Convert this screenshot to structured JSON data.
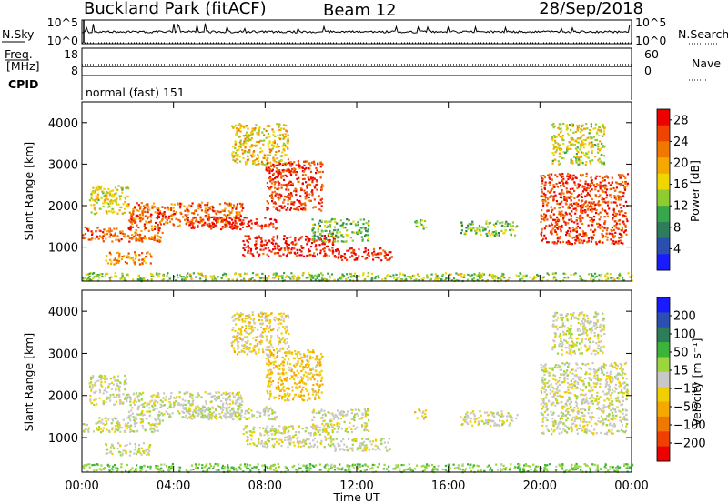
{
  "header": {
    "station": "Buckland Park (fitACF)",
    "beam": "Beam 12",
    "date": "28/Sep/2018"
  },
  "strip_panels": {
    "nsky": {
      "label": "N.Sky",
      "right_label": "N.Search",
      "left_ticks": [
        "10^5",
        "10^0"
      ],
      "right_ticks": [
        "10^5",
        "10^0"
      ]
    },
    "freq": {
      "label_line1": "Freq.",
      "label_line2": "[MHz]",
      "right_label": "Nave",
      "left_ticks": [
        "18",
        "8"
      ],
      "right_ticks": [
        "60",
        "0"
      ]
    },
    "cpid": {
      "label": "CPID",
      "text": "normal (fast) 151"
    }
  },
  "colors": {
    "power_scale": [
      "#1a1aff",
      "#2a4fb0",
      "#2e7d5a",
      "#34a84a",
      "#8fcc30",
      "#f0d600",
      "#f5a800",
      "#f07800",
      "#ee4400",
      "#ee0000"
    ],
    "velocity_scale": [
      "#ee0000",
      "#f04000",
      "#f07800",
      "#f5a800",
      "#f0d000",
      "#c8c8c8",
      "#9ad63c",
      "#3cb43c",
      "#2e7d5a",
      "#2a4fb0",
      "#1a1aff"
    ]
  },
  "chart_data": [
    {
      "type": "heatmap",
      "name": "power",
      "xlabel": "",
      "ylabel": "Slant Range [km]",
      "xlim": [
        "00:00",
        "24:00"
      ],
      "ylim": [
        180,
        4500
      ],
      "y_ticks": [
        1000,
        2000,
        3000,
        4000
      ],
      "colorbar": {
        "label": "Power [dB]",
        "ticks": [
          4,
          8,
          12,
          16,
          20,
          24,
          28
        ],
        "range": [
          0,
          30
        ]
      },
      "regions": [
        {
          "t0": 0.0,
          "t1": 24.0,
          "r0": 200,
          "r1": 400,
          "v": 14
        },
        {
          "t0": 0.0,
          "t1": 3.5,
          "r0": 1150,
          "r1": 1500,
          "v": 24
        },
        {
          "t0": 0.3,
          "t1": 2.0,
          "r0": 1800,
          "r1": 2500,
          "v": 16
        },
        {
          "t0": 1.0,
          "t1": 3.0,
          "r0": 600,
          "r1": 900,
          "v": 22
        },
        {
          "t0": 2.0,
          "t1": 7.0,
          "r0": 1500,
          "r1": 2100,
          "v": 24
        },
        {
          "t0": 4.5,
          "t1": 8.5,
          "r0": 1450,
          "r1": 1750,
          "v": 28
        },
        {
          "t0": 6.5,
          "t1": 9.0,
          "r0": 3000,
          "r1": 4000,
          "v": 18
        },
        {
          "t0": 8.0,
          "t1": 10.5,
          "r0": 1900,
          "r1": 3100,
          "v": 26
        },
        {
          "t0": 7.0,
          "t1": 11.0,
          "r0": 800,
          "r1": 1300,
          "v": 28
        },
        {
          "t0": 10.0,
          "t1": 12.5,
          "r0": 1150,
          "r1": 1700,
          "v": 12
        },
        {
          "t0": 11.0,
          "t1": 13.5,
          "r0": 700,
          "r1": 1000,
          "v": 28
        },
        {
          "t0": 14.5,
          "t1": 15.0,
          "r0": 1450,
          "r1": 1700,
          "v": 12
        },
        {
          "t0": 16.5,
          "t1": 19.0,
          "r0": 1300,
          "r1": 1650,
          "v": 12
        },
        {
          "t0": 20.0,
          "t1": 23.8,
          "r0": 1100,
          "r1": 2800,
          "v": 26
        },
        {
          "t0": 20.5,
          "t1": 22.8,
          "r0": 3000,
          "r1": 4000,
          "v": 16
        }
      ]
    },
    {
      "type": "heatmap",
      "name": "velocity",
      "xlabel": "Time UT",
      "ylabel": "Slant Range [km]",
      "xlim": [
        "00:00",
        "24:00"
      ],
      "ylim": [
        180,
        4500
      ],
      "x_ticks": [
        "00:00",
        "04:00",
        "08:00",
        "12:00",
        "16:00",
        "20:00",
        "00:00"
      ],
      "y_ticks": [
        1000,
        2000,
        3000,
        4000
      ],
      "colorbar": {
        "label": "Velocity [m s⁻¹]",
        "ticks": [
          200,
          100,
          50,
          15,
          -15,
          -50,
          -100,
          -200
        ],
        "range": [
          -250,
          250
        ]
      },
      "regions": [
        {
          "t0": 0.0,
          "t1": 24.0,
          "r0": 200,
          "r1": 400,
          "v": 60
        },
        {
          "t0": 0.0,
          "t1": 3.5,
          "r0": 1150,
          "r1": 1500,
          "v": 0
        },
        {
          "t0": 0.3,
          "t1": 2.0,
          "r0": 1800,
          "r1": 2500,
          "v": 0
        },
        {
          "t0": 1.0,
          "t1": 3.0,
          "r0": 600,
          "r1": 900,
          "v": 0
        },
        {
          "t0": 2.0,
          "t1": 7.0,
          "r0": 1500,
          "r1": 2100,
          "v": 0
        },
        {
          "t0": 4.5,
          "t1": 8.5,
          "r0": 1450,
          "r1": 1750,
          "v": 0
        },
        {
          "t0": 6.5,
          "t1": 9.0,
          "r0": 3000,
          "r1": 4000,
          "v": -40
        },
        {
          "t0": 8.0,
          "t1": 10.5,
          "r0": 1900,
          "r1": 3100,
          "v": -60
        },
        {
          "t0": 7.0,
          "t1": 11.0,
          "r0": 800,
          "r1": 1300,
          "v": 0
        },
        {
          "t0": 10.0,
          "t1": 12.5,
          "r0": 1150,
          "r1": 1700,
          "v": 0
        },
        {
          "t0": 11.0,
          "t1": 13.5,
          "r0": 700,
          "r1": 1000,
          "v": 0
        },
        {
          "t0": 14.5,
          "t1": 15.0,
          "r0": 1450,
          "r1": 1700,
          "v": -30
        },
        {
          "t0": 16.5,
          "t1": 19.0,
          "r0": 1300,
          "r1": 1650,
          "v": 0
        },
        {
          "t0": 20.0,
          "t1": 23.8,
          "r0": 1100,
          "r1": 2800,
          "v": 0
        },
        {
          "t0": 20.5,
          "t1": 22.8,
          "r0": 3000,
          "r1": 4000,
          "v": 0
        }
      ]
    }
  ]
}
